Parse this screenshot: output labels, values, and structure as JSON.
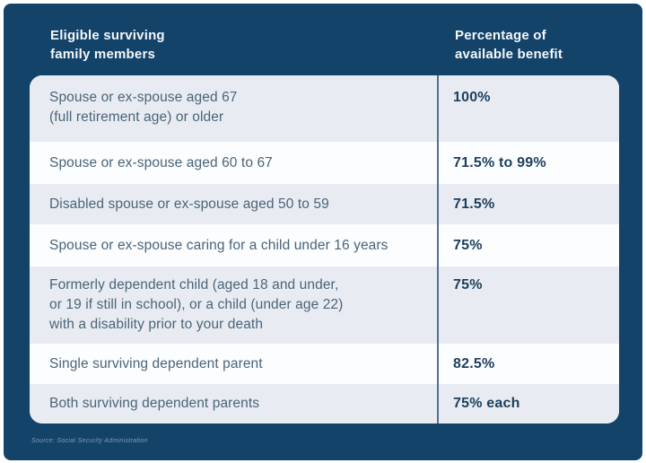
{
  "chart_data": {
    "type": "table",
    "title": "",
    "columns": [
      "Eligible surviving family members",
      "Percentage of available benefit"
    ],
    "rows": [
      [
        "Spouse or ex-spouse aged 67 (full retirement age) or older",
        "100%"
      ],
      [
        "Spouse or ex-spouse aged 60 to 67",
        "71.5% to 99%"
      ],
      [
        "Disabled spouse or ex-spouse aged 50 to 59",
        "71.5%"
      ],
      [
        "Spouse or ex-spouse caring for a child under 16 years",
        "75%"
      ],
      [
        "Formerly dependent child (aged 18 and under, or 19 if still in school), or a child (under age 22) with a disability prior to your death",
        "75%"
      ],
      [
        "Single surviving dependent parent",
        "82.5%"
      ],
      [
        "Both surviving dependent parents",
        "75% each"
      ]
    ],
    "source": "Source: Social Security Administration",
    "legend_position": "none",
    "grid": false
  },
  "colors": {
    "panel": "#14436a",
    "row_light": "#e8ecf2",
    "row_white": "#fcfdfe",
    "divider": "#4e7596",
    "member_text": "#4a6478",
    "benefit_text": "#1c3e5e",
    "header_text": "#f4f7f9",
    "source_text": "#7f9cb4",
    "page_border": "#ffffff"
  },
  "header": {
    "column1": "Eligible surviving\nfamily members",
    "column2": "Percentage of\navailable benefit"
  },
  "rows": [
    {
      "member": "Spouse or ex-spouse aged 67\n(full retirement age) or older",
      "benefit": "100%"
    },
    {
      "member": "Spouse or ex-spouse aged 60 to 67",
      "benefit": "71.5% to 99%"
    },
    {
      "member": "Disabled spouse or ex-spouse aged 50 to 59",
      "benefit": "71.5%"
    },
    {
      "member": "Spouse or ex-spouse caring for a child under 16 years",
      "benefit": "75%"
    },
    {
      "member": "Formerly dependent child (aged 18 and under,\nor 19 if still in school), or a child (under age 22)\nwith a disability prior to your death",
      "benefit": "75%"
    },
    {
      "member": "Single surviving dependent parent",
      "benefit": "82.5%"
    },
    {
      "member": "Both surviving dependent parents",
      "benefit": "75% each"
    }
  ],
  "source": "Source: Social Security Administration"
}
